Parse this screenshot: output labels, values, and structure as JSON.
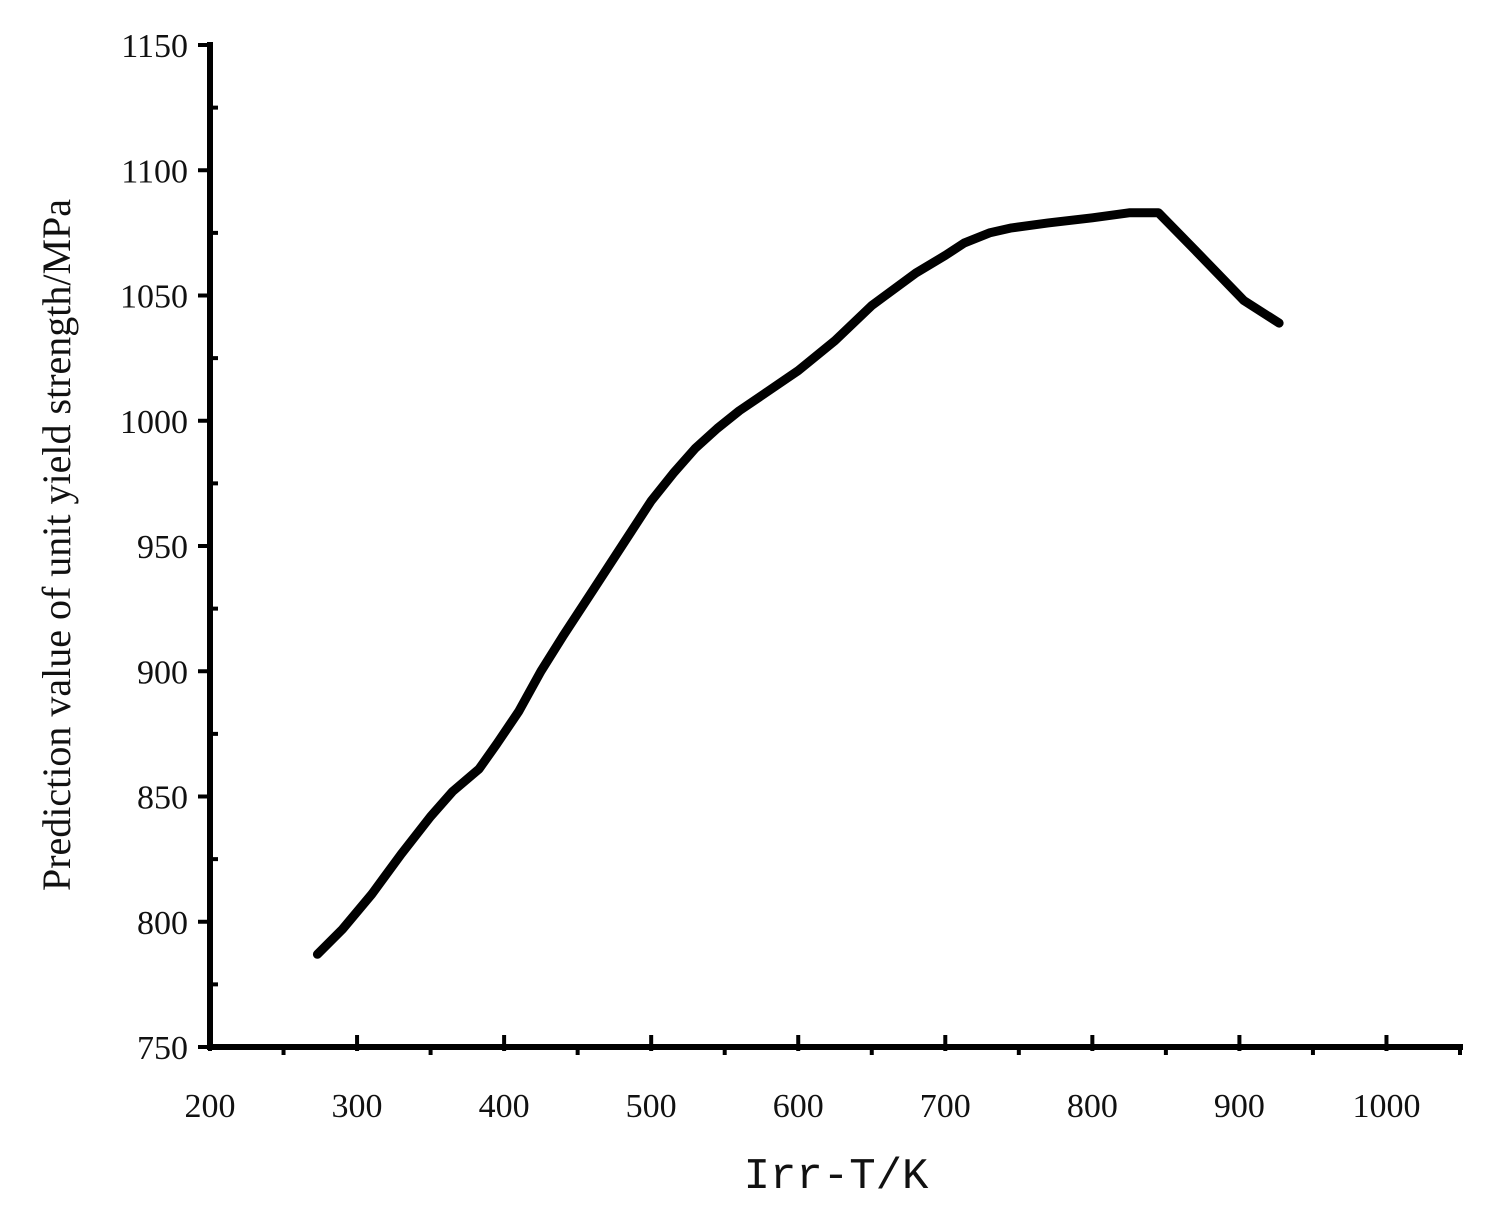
{
  "chart_data": {
    "type": "line",
    "title": "",
    "xlabel": "Irr-T/K",
    "ylabel": "Prediction value of unit yield strength/MPa",
    "xlim": [
      200,
      1050
    ],
    "ylim": [
      750,
      1150
    ],
    "xticks": [
      200,
      300,
      400,
      500,
      600,
      700,
      800,
      900,
      1000
    ],
    "xtick_labels": [
      "200",
      "300",
      "400",
      "500",
      "600",
      "700",
      "800",
      "900",
      "1000"
    ],
    "yticks": [
      750,
      800,
      850,
      900,
      950,
      1000,
      1050,
      1100,
      1150
    ],
    "ytick_labels": [
      "750",
      "800",
      "850",
      "900",
      "950",
      "1000",
      "1050",
      "1100",
      "1150"
    ],
    "grid": false,
    "series": [
      {
        "color": "#000000",
        "x": [
          273,
          290,
          310,
          330,
          350,
          365,
          383,
          395,
          410,
          425,
          440,
          460,
          480,
          500,
          515,
          530,
          545,
          560,
          580,
          600,
          625,
          650,
          680,
          700,
          713,
          730,
          745,
          770,
          800,
          825,
          845,
          870,
          903,
          927
        ],
        "y": [
          787,
          797,
          811,
          827,
          842,
          852,
          861,
          871,
          884,
          900,
          914,
          932,
          950,
          968,
          979,
          989,
          997,
          1004,
          1012,
          1020,
          1032,
          1046,
          1059,
          1066,
          1071,
          1075,
          1077,
          1079,
          1081,
          1083,
          1083,
          1068,
          1048,
          1039
        ]
      }
    ]
  }
}
